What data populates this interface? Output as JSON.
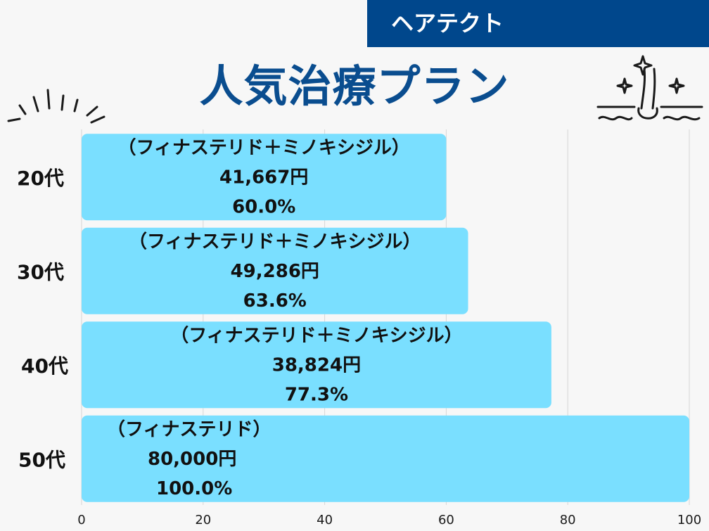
{
  "brand": {
    "name": "ヘアテクト"
  },
  "title": "人気治療プラン",
  "icons": {
    "left": "sparkle-rays-icon",
    "right": "hair-follicle-sparkle-icon"
  },
  "colors": {
    "brand": "#00478c",
    "title": "#0a4d8f",
    "bar": "#7adfff",
    "grid": "#d6d6d6"
  },
  "chart_data": {
    "type": "bar",
    "orientation": "horizontal",
    "categories": [
      "20代",
      "30代",
      "40代",
      "50代"
    ],
    "values": [
      60.0,
      63.6,
      77.3,
      100.0
    ],
    "bar_labels": [
      {
        "plan": "（フィナステリド＋ミノキシジル）",
        "price": "41,667円",
        "percent": "60.0%"
      },
      {
        "plan": "（フィナステリド＋ミノキシジル）",
        "price": "49,286円",
        "percent": "63.6%"
      },
      {
        "plan": "（フィナステリド＋ミノキシジル）",
        "price": "38,824円",
        "percent": "77.3%"
      },
      {
        "plan": "（フィナステリド）",
        "price": "80,000円",
        "percent": "100.0%"
      }
    ],
    "xlim": [
      0,
      100
    ],
    "x_ticks": [
      0,
      20,
      40,
      60,
      80,
      100
    ],
    "grid": true,
    "legend": "none"
  }
}
